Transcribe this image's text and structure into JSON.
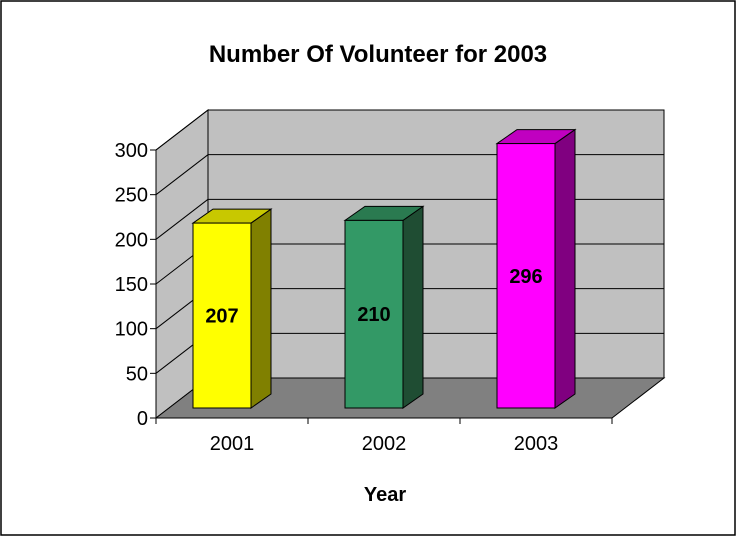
{
  "chart_data": {
    "type": "bar",
    "title": "Number Of Volunteer for 2003",
    "xlabel": "Year",
    "ylabel": "",
    "categories": [
      "2001",
      "2002",
      "2003"
    ],
    "values": [
      207,
      210,
      296
    ],
    "data_labels": [
      "207",
      "210",
      "296"
    ],
    "yticks": [
      "0",
      "50",
      "100",
      "150",
      "200",
      "250",
      "300"
    ],
    "ylim": [
      0,
      300
    ],
    "grid": true,
    "legend": "none",
    "style": "3d-column",
    "colors": {
      "bars": [
        "#ffff00",
        "#339966",
        "#ff00ff"
      ],
      "bar_sides": [
        "#808000",
        "#1f4d33",
        "#800080"
      ],
      "bar_tops": [
        "#c8c800",
        "#2a7a50",
        "#c000c0"
      ],
      "back_wall": "#c0c0c0",
      "side_wall": "#c0c0c0",
      "floor": "#808080"
    }
  }
}
